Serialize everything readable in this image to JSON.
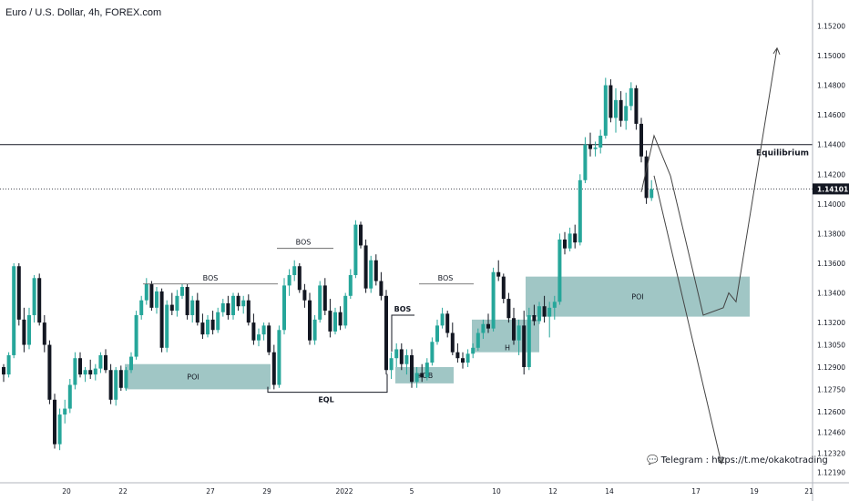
{
  "header": {
    "title": "Euro / U.S. Dollar, 4h, FOREX.com"
  },
  "telegram": {
    "icon": "chat-bubble-icon",
    "text": "Telegram : https://t.me/okakotrading"
  },
  "chart_data": {
    "type": "candlestick",
    "title": "Euro / U.S. Dollar, 4h, FOREX.com",
    "xlabel": "",
    "ylabel": "",
    "ylim": [
      1.1212,
      1.1535
    ],
    "grid": false,
    "y_ticks": [
      "1.15200",
      "1.15000",
      "1.14800",
      "1.14600",
      "1.14400",
      "1.14200",
      "1.14000",
      "1.13800",
      "1.13600",
      "1.13400",
      "1.13200",
      "1.13050",
      "1.12900",
      "1.12750",
      "1.12600",
      "1.12460",
      "1.12320",
      "1.12190"
    ],
    "x_ticks": [
      "20",
      "22",
      "27",
      "29",
      "2022",
      "5",
      "10",
      "12",
      "14",
      "17",
      "19",
      "21"
    ],
    "last_price": {
      "value": 1.14101,
      "label": "1.14101"
    },
    "colors": {
      "up": "#26a69a",
      "down": "#131722",
      "zone": "#8fbcbb",
      "line": "#131722"
    },
    "equilibrium": {
      "value": 1.144,
      "label": "Equilibrium"
    },
    "zones": [
      {
        "label": "POI",
        "low": 1.1275,
        "high": 1.1292
      },
      {
        "label": "+OB",
        "low": 1.1279,
        "high": 1.129
      },
      {
        "label": "",
        "low": 1.13,
        "high": 1.1322
      },
      {
        "label": "POI",
        "low": 1.1324,
        "high": 1.1351
      }
    ],
    "annotations": [
      {
        "label": "BOS",
        "level": 1.1346
      },
      {
        "label": "BOS",
        "level": 1.137
      },
      {
        "label": "BOS",
        "level": 1.1325
      },
      {
        "label": "BOS",
        "level": 1.1346
      },
      {
        "label": "EQL",
        "level": 1.1273
      },
      {
        "label": "H",
        "level": 1.1308
      }
    ],
    "candles": [
      [
        1.129,
        1.1292,
        1.128,
        1.1285
      ],
      [
        1.1285,
        1.13,
        1.1283,
        1.1298
      ],
      [
        1.1298,
        1.136,
        1.1296,
        1.1358
      ],
      [
        1.1358,
        1.136,
        1.1318,
        1.1322
      ],
      [
        1.1322,
        1.133,
        1.13,
        1.1305
      ],
      [
        1.1305,
        1.133,
        1.1302,
        1.1325
      ],
      [
        1.1325,
        1.1352,
        1.132,
        1.135
      ],
      [
        1.135,
        1.1353,
        1.1318,
        1.132
      ],
      [
        1.132,
        1.1325,
        1.13,
        1.1305
      ],
      [
        1.1305,
        1.1308,
        1.1265,
        1.1268
      ],
      [
        1.1268,
        1.1272,
        1.1235,
        1.1238
      ],
      [
        1.1238,
        1.1262,
        1.1234,
        1.1258
      ],
      [
        1.1258,
        1.1268,
        1.1252,
        1.1262
      ],
      [
        1.1262,
        1.1282,
        1.1259,
        1.1278
      ],
      [
        1.1278,
        1.13,
        1.1275,
        1.1296
      ],
      [
        1.1296,
        1.13,
        1.1283,
        1.1285
      ],
      [
        1.1285,
        1.129,
        1.128,
        1.1288
      ],
      [
        1.1288,
        1.1295,
        1.1282,
        1.1285
      ],
      [
        1.1285,
        1.1292,
        1.1281,
        1.1289
      ],
      [
        1.1289,
        1.13,
        1.1286,
        1.1298
      ],
      [
        1.1298,
        1.1302,
        1.1286,
        1.1288
      ],
      [
        1.1288,
        1.1292,
        1.1265,
        1.1268
      ],
      [
        1.1268,
        1.129,
        1.1264,
        1.1288
      ],
      [
        1.1288,
        1.1291,
        1.1274,
        1.1276
      ],
      [
        1.1276,
        1.129,
        1.1274,
        1.1288
      ],
      [
        1.1288,
        1.13,
        1.1286,
        1.1297
      ],
      [
        1.1297,
        1.1328,
        1.1295,
        1.1325
      ],
      [
        1.1325,
        1.1338,
        1.1322,
        1.1335
      ],
      [
        1.1335,
        1.135,
        1.1332,
        1.1346
      ],
      [
        1.1346,
        1.1348,
        1.1328,
        1.133
      ],
      [
        1.133,
        1.1344,
        1.1326,
        1.1341
      ],
      [
        1.1341,
        1.1343,
        1.13,
        1.1303
      ],
      [
        1.1303,
        1.1335,
        1.13,
        1.1332
      ],
      [
        1.1332,
        1.134,
        1.1325,
        1.1328
      ],
      [
        1.1328,
        1.1342,
        1.1324,
        1.1338
      ],
      [
        1.1338,
        1.1346,
        1.1336,
        1.1344
      ],
      [
        1.1344,
        1.1346,
        1.1322,
        1.1325
      ],
      [
        1.1325,
        1.1338,
        1.132,
        1.1335
      ],
      [
        1.1335,
        1.134,
        1.1318,
        1.132
      ],
      [
        1.132,
        1.1326,
        1.1309,
        1.1312
      ],
      [
        1.1312,
        1.1325,
        1.131,
        1.1322
      ],
      [
        1.1322,
        1.1328,
        1.1312,
        1.1315
      ],
      [
        1.1315,
        1.133,
        1.1313,
        1.1327
      ],
      [
        1.1327,
        1.1336,
        1.1324,
        1.1333
      ],
      [
        1.1333,
        1.1338,
        1.1322,
        1.1325
      ],
      [
        1.1325,
        1.134,
        1.1322,
        1.1338
      ],
      [
        1.1338,
        1.134,
        1.1328,
        1.1331
      ],
      [
        1.1331,
        1.1338,
        1.1326,
        1.1335
      ],
      [
        1.1335,
        1.1339,
        1.1318,
        1.132
      ],
      [
        1.132,
        1.1326,
        1.1305,
        1.1308
      ],
      [
        1.1308,
        1.1316,
        1.1304,
        1.1312
      ],
      [
        1.1312,
        1.132,
        1.1308,
        1.1318
      ],
      [
        1.1318,
        1.132,
        1.1298,
        1.13
      ],
      [
        1.13,
        1.1305,
        1.1275,
        1.1278
      ],
      [
        1.1278,
        1.1318,
        1.1276,
        1.1315
      ],
      [
        1.1315,
        1.135,
        1.1312,
        1.1345
      ],
      [
        1.1345,
        1.1356,
        1.1338,
        1.1352
      ],
      [
        1.1352,
        1.1362,
        1.1348,
        1.1358
      ],
      [
        1.1358,
        1.136,
        1.134,
        1.1342
      ],
      [
        1.1342,
        1.1346,
        1.133,
        1.1335
      ],
      [
        1.1335,
        1.134,
        1.1305,
        1.1308
      ],
      [
        1.1308,
        1.1325,
        1.1305,
        1.1322
      ],
      [
        1.1322,
        1.1348,
        1.132,
        1.1345
      ],
      [
        1.1345,
        1.135,
        1.1325,
        1.1328
      ],
      [
        1.1328,
        1.1336,
        1.131,
        1.1314
      ],
      [
        1.1314,
        1.133,
        1.1312,
        1.1327
      ],
      [
        1.1327,
        1.1331,
        1.1315,
        1.1318
      ],
      [
        1.1318,
        1.134,
        1.1316,
        1.1338
      ],
      [
        1.1338,
        1.1356,
        1.1336,
        1.1352
      ],
      [
        1.1352,
        1.1389,
        1.135,
        1.1386
      ],
      [
        1.1386,
        1.1388,
        1.137,
        1.1372
      ],
      [
        1.1372,
        1.1376,
        1.134,
        1.1343
      ],
      [
        1.1343,
        1.1365,
        1.134,
        1.1362
      ],
      [
        1.1362,
        1.1366,
        1.1345,
        1.1348
      ],
      [
        1.1348,
        1.1354,
        1.1335,
        1.1338
      ],
      [
        1.1338,
        1.1342,
        1.1285,
        1.1288
      ],
      [
        1.1288,
        1.13,
        1.1282,
        1.1296
      ],
      [
        1.1296,
        1.1306,
        1.129,
        1.1302
      ],
      [
        1.1302,
        1.1306,
        1.1288,
        1.1292
      ],
      [
        1.1292,
        1.1302,
        1.1285,
        1.1298
      ],
      [
        1.1298,
        1.1302,
        1.1276,
        1.128
      ],
      [
        1.128,
        1.129,
        1.1276,
        1.1286
      ],
      [
        1.1286,
        1.1292,
        1.128,
        1.1283
      ],
      [
        1.1283,
        1.1296,
        1.1281,
        1.1293
      ],
      [
        1.1293,
        1.131,
        1.1291,
        1.1307
      ],
      [
        1.1307,
        1.1322,
        1.1305,
        1.1318
      ],
      [
        1.1318,
        1.133,
        1.1316,
        1.1326
      ],
      [
        1.1326,
        1.1328,
        1.131,
        1.1313
      ],
      [
        1.1313,
        1.132,
        1.1298,
        1.13
      ],
      [
        1.13,
        1.1306,
        1.1293,
        1.1296
      ],
      [
        1.1296,
        1.13,
        1.1289,
        1.1293
      ],
      [
        1.1293,
        1.1302,
        1.129,
        1.1299
      ],
      [
        1.1299,
        1.1306,
        1.1296,
        1.1303
      ],
      [
        1.1303,
        1.1316,
        1.1301,
        1.1313
      ],
      [
        1.1313,
        1.1322,
        1.1309,
        1.1319
      ],
      [
        1.1319,
        1.1326,
        1.1313,
        1.1316
      ],
      [
        1.1316,
        1.1357,
        1.1314,
        1.1354
      ],
      [
        1.1354,
        1.1362,
        1.1348,
        1.1351
      ],
      [
        1.1351,
        1.1353,
        1.1333,
        1.1336
      ],
      [
        1.1336,
        1.134,
        1.132,
        1.1323
      ],
      [
        1.1323,
        1.133,
        1.1305,
        1.1308
      ],
      [
        1.1308,
        1.1322,
        1.1298,
        1.1318
      ],
      [
        1.1318,
        1.1328,
        1.1285,
        1.129
      ],
      [
        1.129,
        1.133,
        1.1288,
        1.1325
      ],
      [
        1.1325,
        1.1332,
        1.1318,
        1.1321
      ],
      [
        1.1321,
        1.1334,
        1.1319,
        1.1331
      ],
      [
        1.1331,
        1.1338,
        1.132,
        1.1324
      ],
      [
        1.1324,
        1.1334,
        1.131,
        1.133
      ],
      [
        1.133,
        1.1338,
        1.1322,
        1.1334
      ],
      [
        1.1334,
        1.138,
        1.1332,
        1.1376
      ],
      [
        1.1376,
        1.1381,
        1.1366,
        1.137
      ],
      [
        1.137,
        1.1384,
        1.1368,
        1.138
      ],
      [
        1.138,
        1.1386,
        1.137,
        1.1374
      ],
      [
        1.1374,
        1.142,
        1.1372,
        1.1416
      ],
      [
        1.1416,
        1.1445,
        1.1414,
        1.144
      ],
      [
        1.144,
        1.1448,
        1.1432,
        1.1437
      ],
      [
        1.1437,
        1.1442,
        1.1432,
        1.1438
      ],
      [
        1.1438,
        1.145,
        1.1434,
        1.1446
      ],
      [
        1.1446,
        1.1485,
        1.1444,
        1.148
      ],
      [
        1.148,
        1.1484,
        1.1455,
        1.1458
      ],
      [
        1.1458,
        1.1478,
        1.1448,
        1.147
      ],
      [
        1.147,
        1.1476,
        1.1452,
        1.1456
      ],
      [
        1.1456,
        1.1475,
        1.145,
        1.1466
      ],
      [
        1.1466,
        1.1482,
        1.1463,
        1.1478
      ],
      [
        1.1478,
        1.148,
        1.145,
        1.1454
      ],
      [
        1.1454,
        1.1458,
        1.1428,
        1.1432
      ],
      [
        1.1432,
        1.1436,
        1.14,
        1.1404
      ],
      [
        1.1404,
        1.1416,
        1.1402,
        1.141
      ]
    ],
    "forecast_path": [
      [
        1.1408,
        1.1446,
        1.1419
      ],
      [
        1.1325,
        1.133,
        1.134,
        1.1334,
        1.1505
      ]
    ],
    "forecast_drop": [
      1.1419,
      1.1225
    ]
  }
}
